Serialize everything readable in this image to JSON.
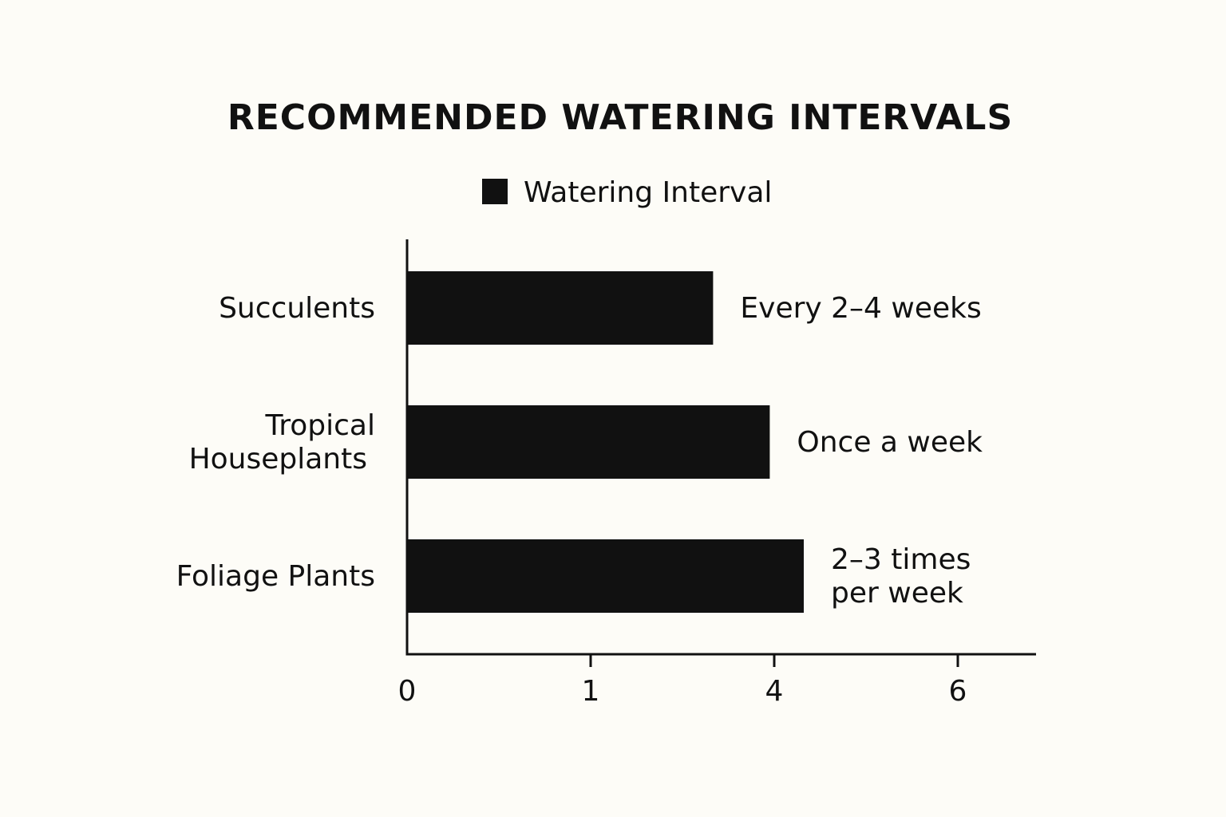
{
  "chart_data": {
    "type": "bar",
    "orientation": "horizontal",
    "title": "RECOMMENDED WATERING INTERVALS",
    "legend": {
      "position": "top-center",
      "entries": [
        "Watering Interval"
      ]
    },
    "categories": [
      "Succulents",
      "Tropical Houseplants",
      "Foliage Plants"
    ],
    "category_lines": [
      [
        "Succulents"
      ],
      [
        "Tropical",
        "Houseplants"
      ],
      [
        "Foliage Plants"
      ]
    ],
    "series": [
      {
        "name": "Watering Interval",
        "values": [
          2.7,
          3.2,
          3.5
        ],
        "labels": [
          "Every 2–4 weeks",
          "Once a week",
          "2–3 times per week"
        ],
        "label_lines": [
          [
            "Every 2–4 weeks"
          ],
          [
            "Once a week"
          ],
          [
            "2–3 times",
            "per week"
          ]
        ]
      }
    ],
    "x_ticks": [
      "0",
      "1",
      "4",
      "6"
    ],
    "grid": false,
    "xlabel": "",
    "ylabel": "",
    "colors": {
      "bar": "#111111",
      "axis": "#111111",
      "background": "#fdfcf7"
    }
  }
}
